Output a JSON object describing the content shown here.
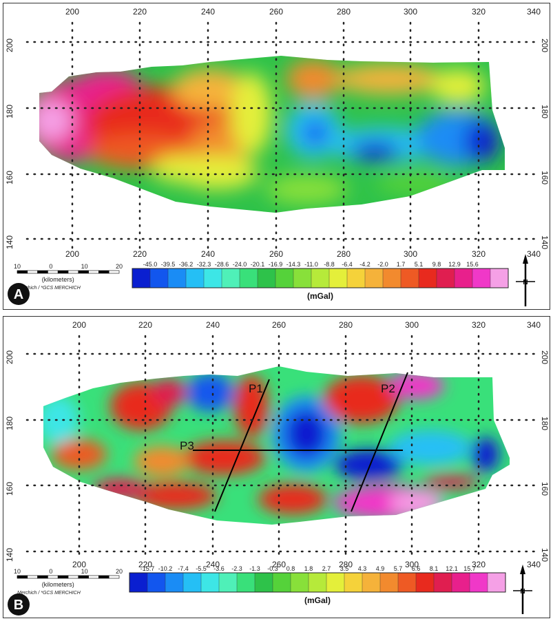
{
  "panels": [
    {
      "id": "A",
      "badge": "A",
      "x_ticks": [
        "200",
        "220",
        "240",
        "260",
        "280",
        "300",
        "320",
        "340"
      ],
      "y_ticks": [
        "200",
        "180",
        "160",
        "140"
      ],
      "scalebar": {
        "labels": [
          "10",
          "0",
          "10",
          "20"
        ],
        "unit": "(kilometers)",
        "crs": "Merchich / *GCS MERCHICH"
      },
      "colorbar": {
        "labels": [
          "-45.0",
          "-39.5",
          "-36.2",
          "-32.3",
          "-28.6",
          "-24.0",
          "-20.1",
          "-16.9",
          "-14.3",
          "-11.0",
          "-8.8",
          "-6.4",
          "-4.2",
          "-2.0",
          "1.7",
          "5.1",
          "9.8",
          "12.9",
          "15.6"
        ],
        "unit": "(mGal)"
      },
      "north": "N"
    },
    {
      "id": "B",
      "badge": "B",
      "x_ticks": [
        "200",
        "220",
        "240",
        "260",
        "280",
        "300",
        "320",
        "340"
      ],
      "y_ticks": [
        "200",
        "180",
        "160",
        "140"
      ],
      "scalebar": {
        "labels": [
          "10",
          "0",
          "10",
          "20"
        ],
        "unit": "(kilometers)",
        "crs": "Merchich / *GCS MERCHICH"
      },
      "colorbar": {
        "labels": [
          "-15.7",
          "-10.2",
          "-7.4",
          "-5.5",
          "-3.6",
          "-2.3",
          "-1.3",
          "-0.3",
          "0.8",
          "1.8",
          "2.7",
          "3.5",
          "4.3",
          "4.9",
          "5.7",
          "6.6",
          "8.1",
          "12.1",
          "15.7"
        ],
        "unit": "(mGal)"
      },
      "north": "N",
      "profiles": [
        "P1",
        "P2",
        "P3"
      ]
    }
  ],
  "colors": {
    "palette": [
      "#0a1fd0",
      "#1256ee",
      "#1a8cf5",
      "#25bff5",
      "#3de6e6",
      "#4ff0b8",
      "#39e07a",
      "#2ec24a",
      "#55d23a",
      "#88e03a",
      "#b6ea3a",
      "#e4ef3a",
      "#f5d23a",
      "#f5b23a",
      "#f28a2e",
      "#ee5a24",
      "#e82a1e",
      "#e01e50",
      "#e8208c",
      "#f038c8",
      "#f5a0e6"
    ]
  }
}
